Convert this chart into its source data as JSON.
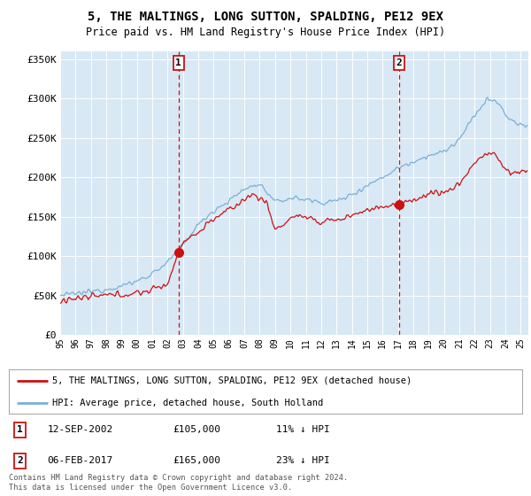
{
  "title": "5, THE MALTINGS, LONG SUTTON, SPALDING, PE12 9EX",
  "subtitle": "Price paid vs. HM Land Registry's House Price Index (HPI)",
  "ylim": [
    0,
    360000
  ],
  "yticks": [
    0,
    50000,
    100000,
    150000,
    200000,
    250000,
    300000,
    350000
  ],
  "ytick_labels": [
    "£0",
    "£50K",
    "£100K",
    "£150K",
    "£200K",
    "£250K",
    "£300K",
    "£350K"
  ],
  "xlim_start": 1995.0,
  "xlim_end": 2025.5,
  "bg_color": "#d8e8f5",
  "hpi_color": "#7ab0d4",
  "price_color": "#cc1111",
  "sale1_x": 2002.71,
  "sale1_y": 105000,
  "sale1_label": "1",
  "sale2_x": 2017.09,
  "sale2_y": 165000,
  "sale2_label": "2",
  "sale1_date": "12-SEP-2002",
  "sale1_price": "£105,000",
  "sale1_pct": "11% ↓ HPI",
  "sale2_date": "06-FEB-2017",
  "sale2_price": "£165,000",
  "sale2_pct": "23% ↓ HPI",
  "legend_entry1": "5, THE MALTINGS, LONG SUTTON, SPALDING, PE12 9EX (detached house)",
  "legend_entry2": "HPI: Average price, detached house, South Holland",
  "footer1": "Contains HM Land Registry data © Crown copyright and database right 2024.",
  "footer2": "This data is licensed under the Open Government Licence v3.0."
}
